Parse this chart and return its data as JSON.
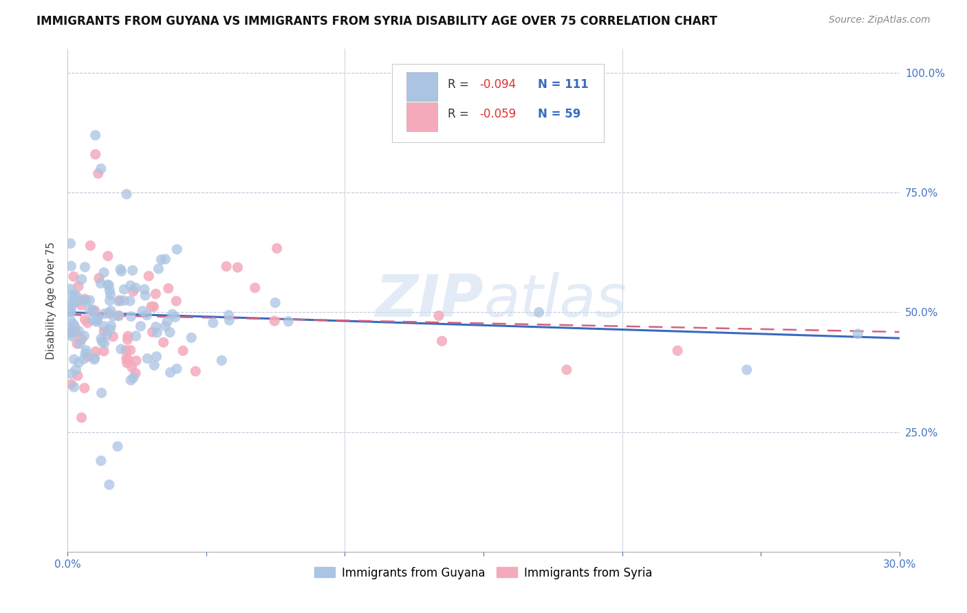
{
  "title": "IMMIGRANTS FROM GUYANA VS IMMIGRANTS FROM SYRIA DISABILITY AGE OVER 75 CORRELATION CHART",
  "source": "Source: ZipAtlas.com",
  "ylabel": "Disability Age Over 75",
  "guyana_R": -0.094,
  "guyana_N": 111,
  "syria_R": -0.059,
  "syria_N": 59,
  "guyana_color": "#aac4e2",
  "syria_color": "#f4aabb",
  "guyana_line_color": "#3a6abf",
  "syria_line_color": "#d46080",
  "xlim": [
    0.0,
    0.3
  ],
  "ylim": [
    0.0,
    1.05
  ],
  "watermark": "ZIPatlas",
  "right_ytick_labels": [
    "25.0%",
    "50.0%",
    "75.0%",
    "100.0%"
  ],
  "right_ytick_vals": [
    0.25,
    0.5,
    0.75,
    1.0
  ],
  "grid_hlines": [
    0.25,
    0.5,
    0.75,
    1.0
  ],
  "grid_vlines": [
    0.1,
    0.2,
    0.3
  ],
  "legend_R_color": "#e03030",
  "legend_N_color": "#3a6abf",
  "guyana_legend_color": "#aac4e2",
  "syria_legend_color": "#f4aabb",
  "title_fontsize": 12,
  "source_fontsize": 10,
  "axis_label_fontsize": 11,
  "tick_fontsize": 11,
  "legend_fontsize": 12
}
